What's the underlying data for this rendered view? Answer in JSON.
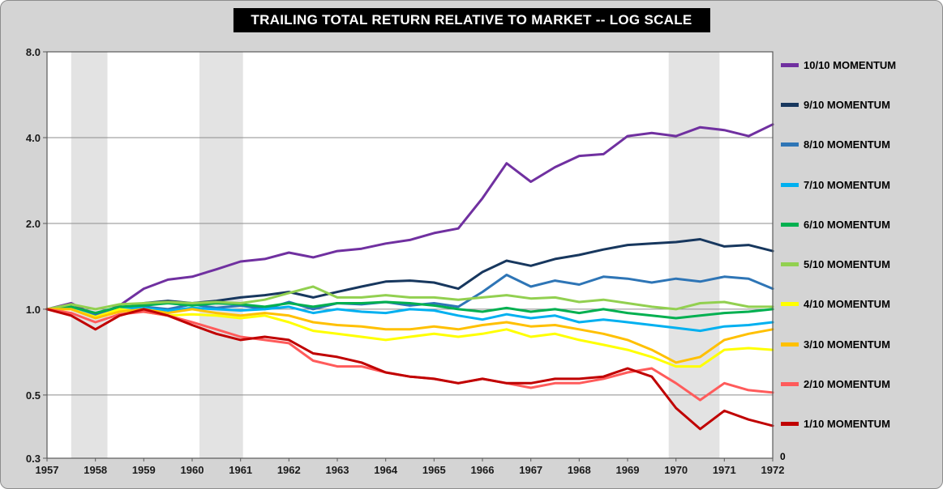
{
  "title": "TRAILING TOTAL RETURN RELATIVE TO MARKET -- LOG SCALE",
  "secondary_axis_label": "0",
  "colors": {
    "frame_background": "#d4d4d4",
    "plot_background": "#ffffff",
    "recession_band": "#e3e3e3",
    "gridline": "#8c8c8c",
    "plot_border": "#595959",
    "title_background": "#000000",
    "title_text": "#ffffff",
    "axis_text": "#1a1a1a"
  },
  "chart_data": {
    "type": "line",
    "title": "TRAILING TOTAL RETURN RELATIVE TO MARKET -- LOG SCALE",
    "xlabel": "",
    "ylabel": "",
    "legend_position": "right",
    "grid": "horizontal-major-only",
    "x_axis": {
      "range": [
        1957,
        1972
      ],
      "ticks": [
        1957,
        1958,
        1959,
        1960,
        1961,
        1962,
        1963,
        1964,
        1965,
        1966,
        1967,
        1968,
        1969,
        1970,
        1971,
        1972
      ],
      "tick_labels": [
        "1957",
        "1958",
        "1959",
        "1960",
        "1961",
        "1962",
        "1963",
        "1964",
        "1965",
        "1966",
        "1967",
        "1968",
        "1969",
        "1970",
        "1971",
        "1972"
      ]
    },
    "y_axis": {
      "scale": "log",
      "range": [
        0.3,
        8.0
      ],
      "ticks": [
        8.0,
        4.0,
        2.0,
        1.0,
        0.5,
        0.3
      ],
      "tick_labels": [
        "8.0",
        "4.0",
        "2.0",
        "1.0",
        "0.5",
        "0.3"
      ]
    },
    "recession_bands": [
      [
        1957.5,
        1958.25
      ],
      [
        1960.15,
        1961.05
      ],
      [
        1969.85,
        1970.9
      ]
    ],
    "x": [
      1957.0,
      1957.5,
      1958.0,
      1958.5,
      1959.0,
      1959.5,
      1960.0,
      1960.5,
      1961.0,
      1961.5,
      1962.0,
      1962.5,
      1963.0,
      1963.5,
      1964.0,
      1964.5,
      1965.0,
      1965.5,
      1966.0,
      1966.5,
      1967.0,
      1967.5,
      1968.0,
      1968.5,
      1969.0,
      1969.5,
      1970.0,
      1970.5,
      1971.0,
      1971.5,
      1972.0
    ],
    "series": [
      {
        "name": "10/10 MOMENTUM",
        "color": "#7030a0",
        "values": [
          1.0,
          1.05,
          0.95,
          1.03,
          1.18,
          1.27,
          1.3,
          1.38,
          1.47,
          1.5,
          1.58,
          1.52,
          1.6,
          1.63,
          1.7,
          1.75,
          1.85,
          1.92,
          2.45,
          3.25,
          2.8,
          3.15,
          3.45,
          3.5,
          4.05,
          4.15,
          4.05,
          4.35,
          4.25,
          4.05,
          4.45
        ]
      },
      {
        "name": "9/10 MOMENTUM",
        "color": "#17375e",
        "values": [
          1.0,
          1.02,
          0.96,
          1.0,
          1.05,
          1.07,
          1.05,
          1.07,
          1.1,
          1.12,
          1.15,
          1.1,
          1.15,
          1.2,
          1.25,
          1.26,
          1.24,
          1.18,
          1.35,
          1.48,
          1.42,
          1.5,
          1.55,
          1.62,
          1.68,
          1.7,
          1.72,
          1.76,
          1.66,
          1.68,
          1.6
        ]
      },
      {
        "name": "8/10 MOMENTUM",
        "color": "#2e75b6",
        "values": [
          1.0,
          1.02,
          0.95,
          1.0,
          1.02,
          1.0,
          1.04,
          1.01,
          1.03,
          1.0,
          1.06,
          1.0,
          1.05,
          1.04,
          1.06,
          1.03,
          1.05,
          1.02,
          1.15,
          1.32,
          1.2,
          1.26,
          1.22,
          1.3,
          1.28,
          1.24,
          1.28,
          1.25,
          1.3,
          1.28,
          1.18
        ]
      },
      {
        "name": "7/10 MOMENTUM",
        "color": "#00b0f0",
        "values": [
          1.0,
          1.01,
          0.94,
          1.0,
          1.01,
          0.99,
          1.01,
          1.0,
          0.99,
          1.0,
          1.02,
          0.97,
          1.0,
          0.98,
          0.97,
          1.0,
          0.99,
          0.95,
          0.92,
          0.96,
          0.93,
          0.95,
          0.9,
          0.92,
          0.9,
          0.88,
          0.86,
          0.84,
          0.87,
          0.88,
          0.9
        ]
      },
      {
        "name": "6/10 MOMENTUM",
        "color": "#00b050",
        "values": [
          1.0,
          1.02,
          0.97,
          1.02,
          1.03,
          1.05,
          1.03,
          1.05,
          1.04,
          1.02,
          1.05,
          1.02,
          1.05,
          1.05,
          1.06,
          1.05,
          1.03,
          1.0,
          0.98,
          1.01,
          0.98,
          1.0,
          0.97,
          1.0,
          0.97,
          0.95,
          0.93,
          0.95,
          0.97,
          0.98,
          1.0
        ]
      },
      {
        "name": "5/10 MOMENTUM",
        "color": "#92d050",
        "values": [
          1.0,
          1.04,
          1.0,
          1.04,
          1.05,
          1.06,
          1.05,
          1.06,
          1.05,
          1.08,
          1.14,
          1.2,
          1.1,
          1.1,
          1.12,
          1.1,
          1.1,
          1.08,
          1.1,
          1.12,
          1.09,
          1.1,
          1.06,
          1.08,
          1.05,
          1.02,
          1.0,
          1.05,
          1.06,
          1.02,
          1.02
        ]
      },
      {
        "name": "4/10 MOMENTUM",
        "color": "#ffff00",
        "values": [
          1.0,
          1.0,
          0.94,
          1.0,
          0.98,
          0.95,
          0.96,
          0.95,
          0.93,
          0.95,
          0.9,
          0.84,
          0.82,
          0.8,
          0.78,
          0.8,
          0.82,
          0.8,
          0.82,
          0.85,
          0.8,
          0.82,
          0.78,
          0.75,
          0.72,
          0.68,
          0.63,
          0.63,
          0.72,
          0.73,
          0.72
        ]
      },
      {
        "name": "3/10 MOMENTUM",
        "color": "#ffc000",
        "values": [
          1.0,
          1.0,
          0.93,
          0.98,
          1.0,
          0.97,
          1.0,
          0.97,
          0.95,
          0.97,
          0.95,
          0.9,
          0.88,
          0.87,
          0.85,
          0.85,
          0.87,
          0.85,
          0.88,
          0.9,
          0.87,
          0.88,
          0.85,
          0.82,
          0.78,
          0.72,
          0.65,
          0.68,
          0.78,
          0.82,
          0.85
        ]
      },
      {
        "name": "2/10 MOMENTUM",
        "color": "#ff5b5b",
        "values": [
          1.0,
          0.97,
          0.9,
          0.96,
          0.98,
          0.95,
          0.9,
          0.85,
          0.8,
          0.78,
          0.76,
          0.66,
          0.63,
          0.63,
          0.6,
          0.58,
          0.57,
          0.55,
          0.57,
          0.55,
          0.53,
          0.55,
          0.55,
          0.57,
          0.6,
          0.62,
          0.55,
          0.48,
          0.55,
          0.52,
          0.51
        ]
      },
      {
        "name": "1/10 MOMENTUM",
        "color": "#c00000",
        "values": [
          1.0,
          0.95,
          0.85,
          0.95,
          1.0,
          0.95,
          0.88,
          0.82,
          0.78,
          0.8,
          0.78,
          0.7,
          0.68,
          0.65,
          0.6,
          0.58,
          0.57,
          0.55,
          0.57,
          0.55,
          0.55,
          0.57,
          0.57,
          0.58,
          0.62,
          0.58,
          0.45,
          0.38,
          0.44,
          0.41,
          0.39
        ]
      }
    ]
  }
}
